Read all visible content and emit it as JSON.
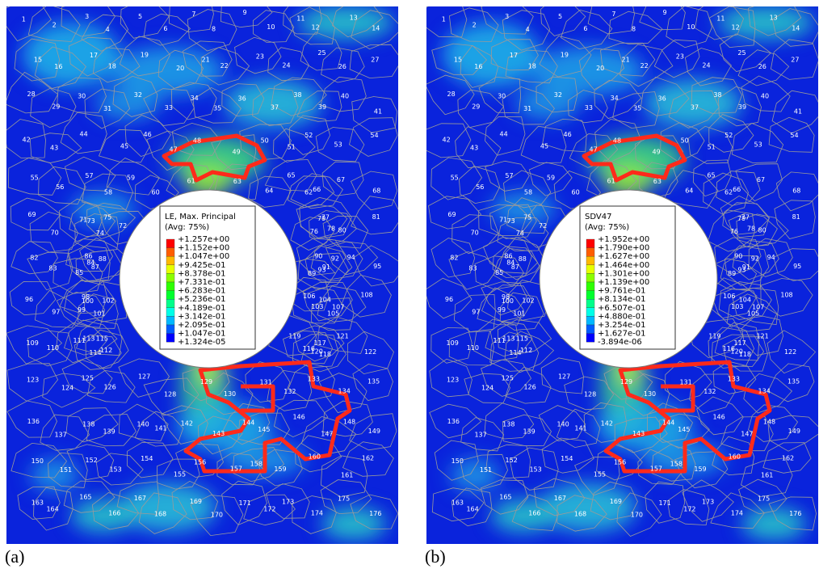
{
  "panels": [
    {
      "label": "(a)",
      "legend": {
        "title": "LE, Max. Principal",
        "subtitle": "(Avg: 75%)",
        "labels": [
          "+1.257e+00",
          "+1.152e+00",
          "+1.047e+00",
          "+9.425e-01",
          "+8.378e-01",
          "+7.331e-01",
          "+6.283e-01",
          "+5.236e-01",
          "+4.189e-01",
          "+3.142e-01",
          "+2.095e-01",
          "+1.047e-01",
          "+1.324e-05"
        ]
      }
    },
    {
      "label": "(b)",
      "legend": {
        "title": "SDV47",
        "subtitle": "(Avg: 75%)",
        "labels": [
          "+1.952e+00",
          "+1.790e+00",
          "+1.627e+00",
          "+1.464e+00",
          "+1.301e+00",
          "+1.139e+00",
          "+9.761e-01",
          "+8.134e-01",
          "+6.507e-01",
          "+4.880e-01",
          "+3.254e-01",
          "+1.627e-01",
          "-3.894e-06"
        ]
      }
    }
  ],
  "legend_colors": [
    "#ff0000",
    "#ff5d00",
    "#ffb900",
    "#e7ff00",
    "#8bff00",
    "#2eff00",
    "#00ff2e",
    "#00ff8b",
    "#00ffe8",
    "#00b9ff",
    "#005dff",
    "#0000ff"
  ],
  "grains": [
    "1",
    "2",
    "3",
    "4",
    "5",
    "6",
    "7",
    "8",
    "9",
    "10",
    "11",
    "12",
    "13",
    "14",
    "15",
    "16",
    "17",
    "18",
    "19",
    "20",
    "21",
    "22",
    "23",
    "24",
    "25",
    "26",
    "27",
    "28",
    "29",
    "30",
    "31",
    "32",
    "33",
    "34",
    "35",
    "36",
    "37",
    "38",
    "39",
    "40",
    "41",
    "42",
    "43",
    "44",
    "45",
    "46",
    "47",
    "48",
    "49",
    "50",
    "51",
    "52",
    "53",
    "54",
    "55",
    "56",
    "57",
    "58",
    "59",
    "60",
    "61",
    "62",
    "63",
    "64",
    "65",
    "66",
    "67",
    "68",
    "69",
    "70",
    "71",
    "72",
    "73",
    "74",
    "75",
    "76",
    "77",
    "78",
    "79",
    "80",
    "81",
    "82",
    "83",
    "84",
    "85",
    "86",
    "87",
    "88",
    "89",
    "90",
    "91",
    "92",
    "93",
    "94",
    "95",
    "96",
    "97",
    "98",
    "99",
    "100",
    "101",
    "102",
    "103",
    "104",
    "105",
    "106",
    "107",
    "108",
    "109",
    "110",
    "111",
    "112",
    "113",
    "114",
    "115",
    "116",
    "117",
    "118",
    "119",
    "120",
    "121",
    "122",
    "123",
    "124",
    "125",
    "126",
    "127",
    "128",
    "129",
    "130",
    "131",
    "132",
    "133",
    "134",
    "135",
    "136",
    "137",
    "138",
    "139",
    "140",
    "141",
    "142",
    "143",
    "144",
    "145",
    "146",
    "147",
    "148",
    "149",
    "150",
    "151",
    "152",
    "153",
    "154",
    "155",
    "156",
    "157",
    "158",
    "159",
    "160",
    "161",
    "162",
    "163",
    "164",
    "165",
    "166",
    "167",
    "168",
    "169",
    "170",
    "171",
    "172",
    "173",
    "174",
    "175",
    "176"
  ]
}
